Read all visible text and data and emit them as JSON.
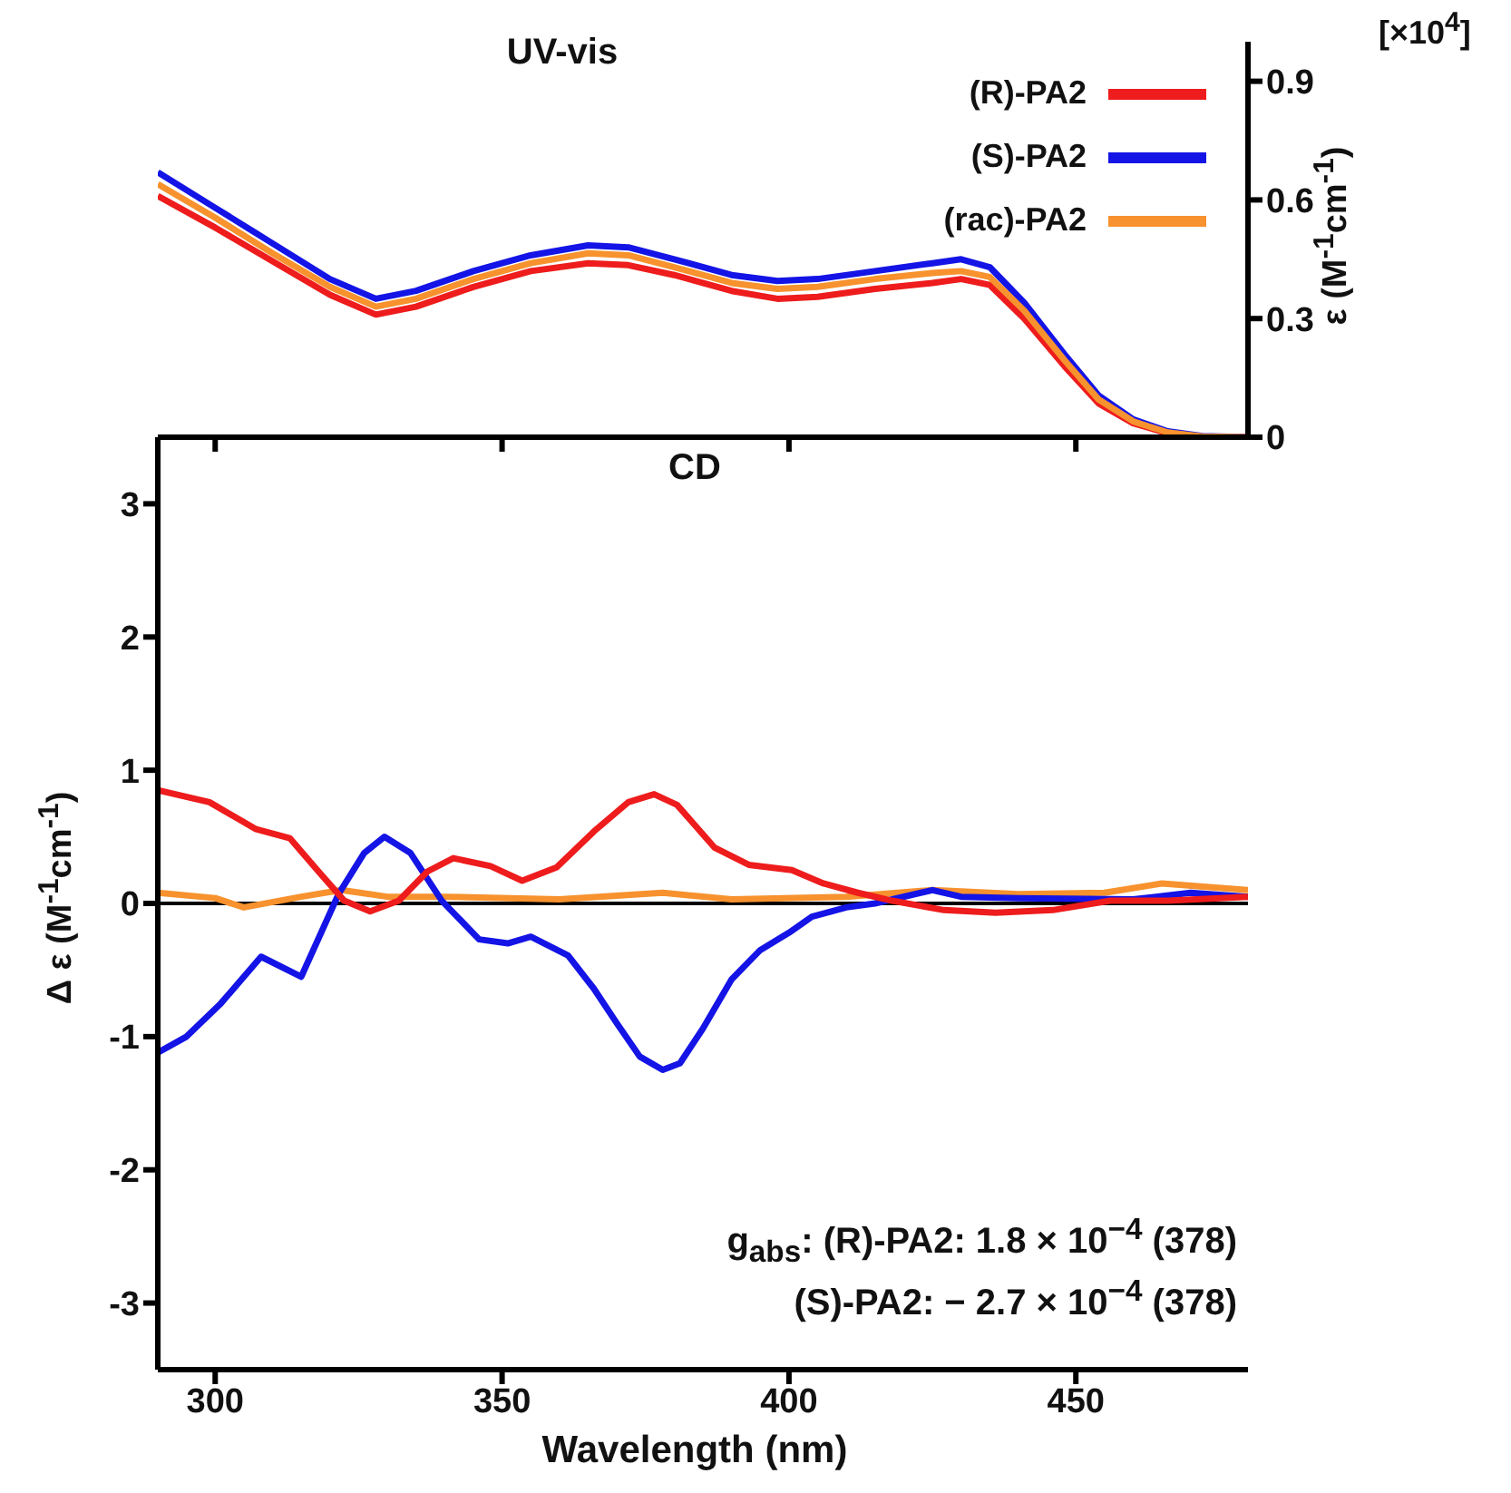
{
  "chart_data": [
    {
      "type": "line",
      "title": "UV-vis",
      "ylabel": "ε (M$^{-1}$cm$^{-1}$)",
      "annotations": [
        "[×10$^{4}$]"
      ],
      "legend": "top right",
      "tick_labels": "y",
      "xlim": [
        290,
        480
      ],
      "xticks": [
        300,
        350,
        400,
        450
      ],
      "ylim": [
        0,
        1.0
      ],
      "yticks": [
        0,
        0.3,
        0.6,
        0.9
      ],
      "x": [
        290,
        300,
        310,
        320,
        328,
        335,
        345,
        355,
        365,
        372,
        380,
        390,
        398,
        405,
        415,
        425,
        430,
        435,
        441,
        448,
        454,
        460,
        466,
        472,
        480
      ],
      "series": [
        {
          "name": "(R)-PA2",
          "color": "#ee1c1c",
          "values": [
            0.61,
            0.53,
            0.445,
            0.36,
            0.31,
            0.33,
            0.38,
            0.42,
            0.44,
            0.435,
            0.41,
            0.37,
            0.35,
            0.355,
            0.375,
            0.39,
            0.4,
            0.385,
            0.3,
            0.18,
            0.085,
            0.035,
            0.01,
            0.002,
            0
          ]
        },
        {
          "name": "(S)-PA2",
          "color": "#1414e6",
          "values": [
            0.67,
            0.58,
            0.49,
            0.4,
            0.35,
            0.37,
            0.42,
            0.46,
            0.485,
            0.48,
            0.45,
            0.41,
            0.395,
            0.4,
            0.42,
            0.44,
            0.45,
            0.43,
            0.34,
            0.21,
            0.105,
            0.045,
            0.015,
            0.003,
            0
          ]
        },
        {
          "name": "(rac)-PA2",
          "color": "#f7922e",
          "values": [
            0.64,
            0.555,
            0.465,
            0.38,
            0.33,
            0.35,
            0.4,
            0.44,
            0.465,
            0.46,
            0.43,
            0.39,
            0.375,
            0.38,
            0.4,
            0.415,
            0.42,
            0.405,
            0.32,
            0.195,
            0.095,
            0.04,
            0.012,
            0.002,
            0
          ]
        }
      ]
    },
    {
      "type": "line",
      "title": "CD",
      "xlabel": "Wavelength (nm)",
      "ylabel": "Δ ε (M$^{-1}$cm$^{-1}$)",
      "annotations": [
        "g$_{abs}$: (R)-PA2:   1.8 × 10$^{−4}$ (378)",
        "(S)-PA2: − 2.7 × 10$^{−4}$ (378)"
      ],
      "xlim": [
        290,
        480
      ],
      "xticks": [
        300,
        350,
        400,
        450
      ],
      "ylim": [
        -3.5,
        3.5
      ],
      "yticks": [
        -3,
        -2,
        -1,
        0,
        1,
        2,
        3
      ],
      "ref_lines": [
        {
          "axis": "y",
          "value": 0,
          "color": "#000000"
        }
      ],
      "series": [
        {
          "color": "#f7922e",
          "x": [
            290,
            300,
            305,
            315,
            322,
            330,
            340,
            360,
            378,
            390,
            410,
            425,
            440,
            455,
            465,
            480
          ],
          "values": [
            0.08,
            0.04,
            -0.03,
            0.05,
            0.1,
            0.05,
            0.05,
            0.03,
            0.08,
            0.03,
            0.05,
            0.1,
            0.07,
            0.08,
            0.15,
            0.1
          ]
        },
        {
          "color": "#1414e6",
          "x": [
            290,
            295,
            301,
            308,
            315,
            321.5,
            326,
            329.5,
            334,
            339.5,
            346,
            351,
            355,
            361.5,
            366,
            370,
            374,
            378,
            381,
            385,
            390,
            395,
            400,
            404,
            410,
            415,
            425,
            430,
            440,
            460,
            470,
            480
          ],
          "values": [
            -1.12,
            -1.0,
            -0.75,
            -0.4,
            -0.55,
            0.07,
            0.38,
            0.5,
            0.38,
            0.02,
            -0.27,
            -0.3,
            -0.25,
            -0.39,
            -0.64,
            -0.9,
            -1.15,
            -1.25,
            -1.2,
            -0.94,
            -0.57,
            -0.35,
            -0.22,
            -0.1,
            -0.03,
            0,
            0.1,
            0.05,
            0.04,
            0.03,
            0.08,
            0.05
          ]
        },
        {
          "color": "#ee1c1c",
          "x": [
            290,
            299,
            307,
            313,
            318,
            322.5,
            327,
            332,
            337,
            341.5,
            348,
            353.5,
            359.5,
            366,
            372,
            376.5,
            380.5,
            387,
            393,
            400.5,
            406,
            412,
            418,
            427,
            436,
            446,
            456,
            466,
            480
          ],
          "values": [
            0.85,
            0.76,
            0.56,
            0.49,
            0.24,
            0.02,
            -0.06,
            0.02,
            0.24,
            0.34,
            0.28,
            0.17,
            0.27,
            0.54,
            0.76,
            0.82,
            0.74,
            0.42,
            0.29,
            0.25,
            0.15,
            0.08,
            0.02,
            -0.05,
            -0.07,
            -0.05,
            0.02,
            0.02,
            0.05
          ]
        }
      ]
    }
  ]
}
